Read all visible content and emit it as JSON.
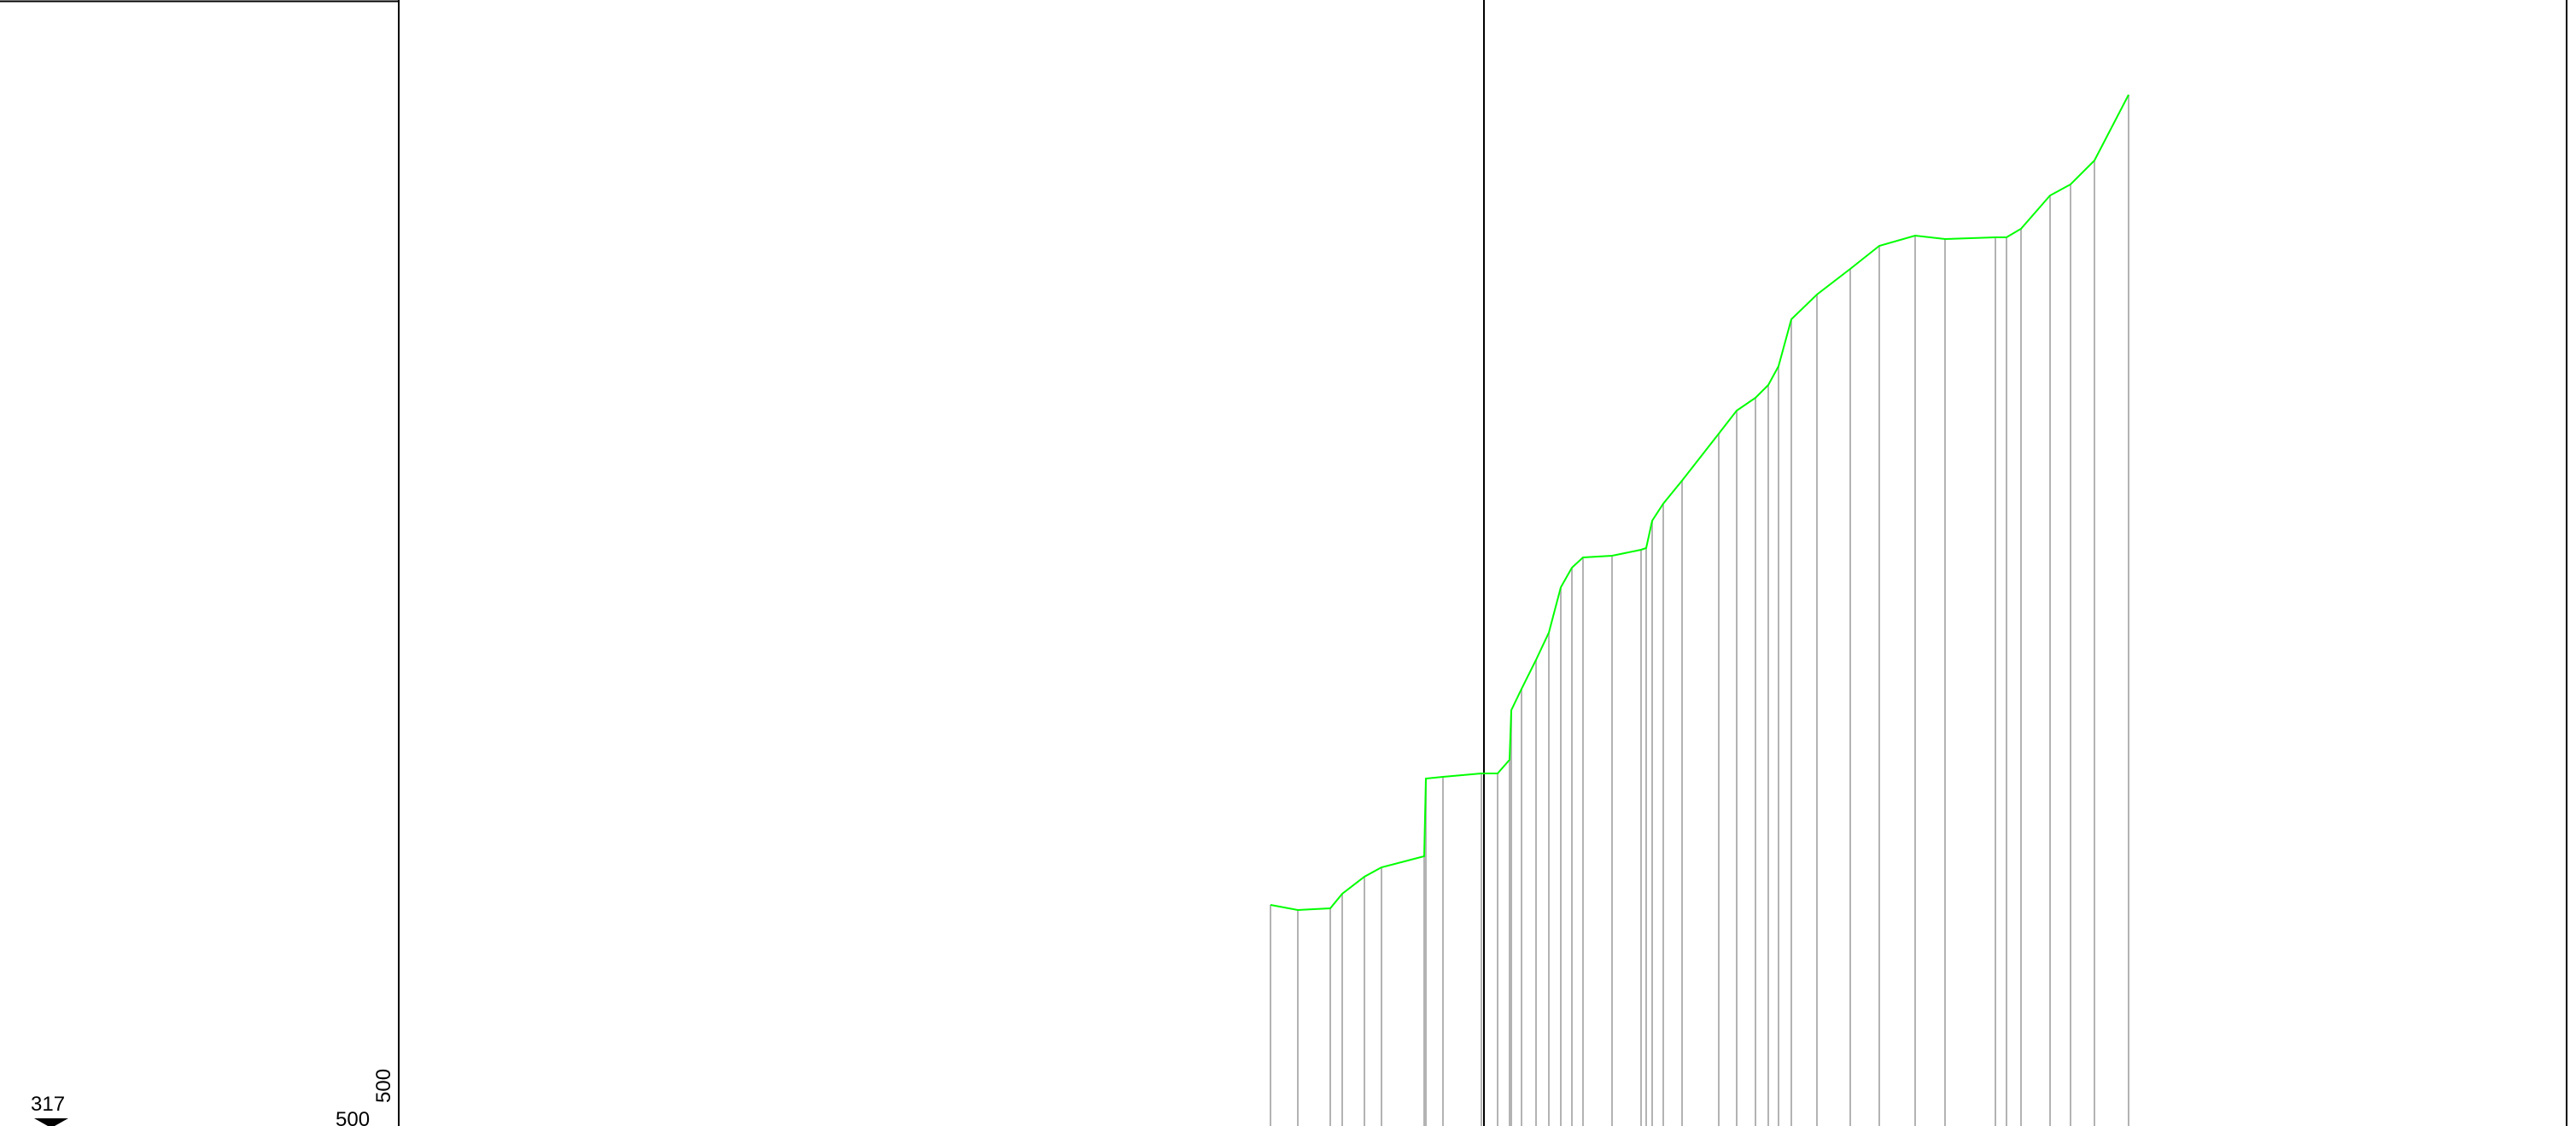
{
  "labels": {
    "level_marker": "317",
    "scale_bottom": "500",
    "scale_vertical": "500"
  },
  "colors": {
    "profile": "#00ff00",
    "grid": "#b3b3b3",
    "frame": "#000000"
  },
  "icons": {
    "level_marker": "triangle-level-marker-icon"
  }
}
